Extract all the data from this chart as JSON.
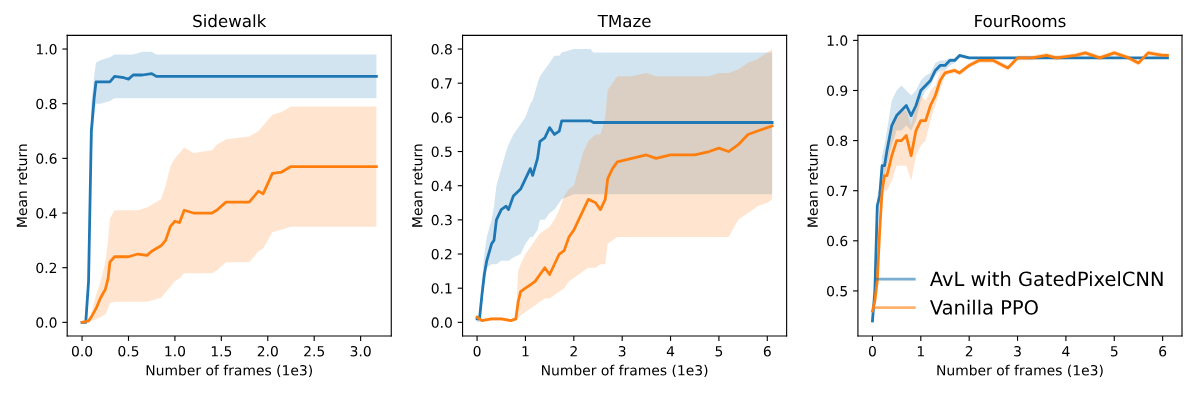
{
  "chart_data": [
    {
      "type": "line",
      "title": "Sidewalk",
      "xlabel": "Number of frames (1e3)",
      "ylabel": "Mean return",
      "xlim": [
        -0.16,
        3.33
      ],
      "ylim": [
        -0.05,
        1.05
      ],
      "xticks": [
        {
          "value": 0,
          "label": "0.0"
        },
        {
          "value": 0.5,
          "label": "0.5"
        },
        {
          "value": 1,
          "label": "1.0"
        },
        {
          "value": 1.5,
          "label": "1.5"
        },
        {
          "value": 2,
          "label": "2.0"
        },
        {
          "value": 2.5,
          "label": "2.5"
        },
        {
          "value": 3,
          "label": "3.0"
        }
      ],
      "yticks": [
        {
          "value": 0,
          "label": "0.0"
        },
        {
          "value": 0.2,
          "label": "0.2"
        },
        {
          "value": 0.4,
          "label": "0.4"
        },
        {
          "value": 0.6,
          "label": "0.6"
        },
        {
          "value": 0.8,
          "label": "0.8"
        },
        {
          "value": 1,
          "label": "1.0"
        }
      ],
      "series": [
        {
          "color": "#1f77b4",
          "x": [
            0,
            0.04,
            0.07,
            0.1,
            0.13,
            0.15,
            0.2,
            0.3,
            0.35,
            0.45,
            0.5,
            0.55,
            0.65,
            0.75,
            0.8,
            3.17
          ],
          "values": [
            0,
            0,
            0.15,
            0.7,
            0.82,
            0.88,
            0.88,
            0.88,
            0.9,
            0.895,
            0.89,
            0.905,
            0.905,
            0.91,
            0.9,
            0.9
          ],
          "lower": [
            0,
            0,
            0.1,
            0.6,
            0.75,
            0.8,
            0.8,
            0.81,
            0.82,
            0.82,
            0.82,
            0.82,
            0.82,
            0.82,
            0.82,
            0.82
          ],
          "upper": [
            0,
            0,
            0.2,
            0.8,
            0.9,
            0.95,
            0.96,
            0.97,
            0.98,
            0.98,
            0.98,
            0.98,
            0.99,
            0.99,
            0.98,
            0.98
          ]
        },
        {
          "color": "#ff7f0e",
          "x": [
            0,
            0.07,
            0.1,
            0.15,
            0.2,
            0.25,
            0.28,
            0.3,
            0.35,
            0.5,
            0.6,
            0.7,
            0.75,
            0.85,
            0.9,
            0.95,
            1.0,
            1.05,
            1.1,
            1.2,
            1.4,
            1.45,
            1.55,
            1.8,
            1.9,
            1.95,
            2.05,
            2.15,
            2.25,
            3.17
          ],
          "values": [
            0,
            0.005,
            0.02,
            0.05,
            0.09,
            0.12,
            0.16,
            0.22,
            0.24,
            0.24,
            0.25,
            0.245,
            0.26,
            0.28,
            0.3,
            0.35,
            0.37,
            0.365,
            0.41,
            0.4,
            0.4,
            0.41,
            0.44,
            0.44,
            0.48,
            0.47,
            0.545,
            0.55,
            0.57,
            0.57
          ],
          "lower": [
            0,
            0,
            0.005,
            0.01,
            0.02,
            0.03,
            0.05,
            0.07,
            0.075,
            0.075,
            0.075,
            0.075,
            0.08,
            0.09,
            0.11,
            0.13,
            0.15,
            0.16,
            0.18,
            0.18,
            0.18,
            0.19,
            0.22,
            0.22,
            0.26,
            0.27,
            0.33,
            0.34,
            0.35,
            0.35
          ],
          "upper": [
            0,
            0.01,
            0.03,
            0.1,
            0.15,
            0.22,
            0.3,
            0.38,
            0.41,
            0.41,
            0.41,
            0.42,
            0.43,
            0.45,
            0.5,
            0.57,
            0.6,
            0.62,
            0.64,
            0.62,
            0.63,
            0.65,
            0.67,
            0.68,
            0.7,
            0.72,
            0.76,
            0.77,
            0.79,
            0.79
          ]
        }
      ]
    },
    {
      "type": "line",
      "title": "TMaze",
      "xlabel": "Number of frames (1e3)",
      "ylabel": "Mean return",
      "xlim": [
        -0.3,
        6.4
      ],
      "ylim": [
        -0.04,
        0.84
      ],
      "xticks": [
        0,
        1,
        2,
        3,
        4,
        5,
        6
      ],
      "yticks": [
        {
          "value": 0,
          "label": "0.0"
        },
        0.1,
        0.2,
        0.3,
        0.4,
        0.5,
        0.6,
        0.7,
        0.8
      ],
      "series": [
        {
          "color": "#1f77b4",
          "x": [
            0,
            0.05,
            0.1,
            0.15,
            0.2,
            0.3,
            0.35,
            0.4,
            0.5,
            0.6,
            0.65,
            0.75,
            0.9,
            1.0,
            1.1,
            1.15,
            1.25,
            1.3,
            1.4,
            1.5,
            1.6,
            1.7,
            1.75,
            2.0,
            2.35,
            2.4,
            6.1
          ],
          "values": [
            0.01,
            0.01,
            0.08,
            0.14,
            0.18,
            0.23,
            0.24,
            0.3,
            0.33,
            0.34,
            0.33,
            0.37,
            0.39,
            0.42,
            0.45,
            0.43,
            0.48,
            0.53,
            0.54,
            0.57,
            0.55,
            0.56,
            0.59,
            0.59,
            0.59,
            0.585,
            0.585
          ],
          "lower": [
            0,
            0,
            0.05,
            0.12,
            0.16,
            0.17,
            0.17,
            0.17,
            0.18,
            0.18,
            0.18,
            0.19,
            0.2,
            0.23,
            0.25,
            0.25,
            0.27,
            0.3,
            0.3,
            0.32,
            0.33,
            0.35,
            0.36,
            0.375,
            0.375,
            0.375,
            0.375
          ],
          "upper": [
            0.02,
            0.02,
            0.12,
            0.2,
            0.25,
            0.3,
            0.34,
            0.4,
            0.45,
            0.5,
            0.52,
            0.55,
            0.58,
            0.6,
            0.64,
            0.65,
            0.7,
            0.72,
            0.74,
            0.76,
            0.78,
            0.78,
            0.79,
            0.8,
            0.8,
            0.79,
            0.79
          ]
        },
        {
          "color": "#ff7f0e",
          "x": [
            0,
            0.1,
            0.3,
            0.5,
            0.7,
            0.8,
            0.85,
            0.9,
            1.0,
            1.1,
            1.2,
            1.3,
            1.4,
            1.5,
            1.6,
            1.7,
            1.8,
            1.9,
            2.0,
            2.1,
            2.2,
            2.3,
            2.45,
            2.55,
            2.65,
            2.7,
            2.8,
            2.9,
            3.2,
            3.5,
            3.7,
            4.0,
            4.5,
            4.8,
            5.0,
            5.2,
            5.4,
            5.6,
            5.8,
            6.0,
            6.1
          ],
          "values": [
            0.015,
            0.005,
            0.01,
            0.01,
            0.005,
            0.01,
            0.06,
            0.09,
            0.1,
            0.11,
            0.12,
            0.14,
            0.16,
            0.14,
            0.17,
            0.2,
            0.21,
            0.25,
            0.27,
            0.3,
            0.33,
            0.36,
            0.35,
            0.33,
            0.36,
            0.42,
            0.45,
            0.47,
            0.48,
            0.49,
            0.48,
            0.49,
            0.49,
            0.5,
            0.51,
            0.5,
            0.52,
            0.55,
            0.56,
            0.57,
            0.575
          ],
          "lower": [
            0.01,
            0.005,
            0.005,
            0.005,
            0.005,
            0.005,
            0.01,
            0.02,
            0.03,
            0.04,
            0.05,
            0.06,
            0.07,
            0.07,
            0.08,
            0.09,
            0.1,
            0.12,
            0.13,
            0.14,
            0.15,
            0.16,
            0.16,
            0.17,
            0.17,
            0.23,
            0.24,
            0.25,
            0.25,
            0.25,
            0.25,
            0.25,
            0.25,
            0.25,
            0.25,
            0.25,
            0.3,
            0.32,
            0.34,
            0.35,
            0.36
          ],
          "upper": [
            0.02,
            0.01,
            0.015,
            0.015,
            0.01,
            0.015,
            0.15,
            0.17,
            0.2,
            0.22,
            0.24,
            0.26,
            0.27,
            0.28,
            0.3,
            0.33,
            0.37,
            0.39,
            0.4,
            0.45,
            0.5,
            0.53,
            0.55,
            0.55,
            0.6,
            0.68,
            0.7,
            0.72,
            0.72,
            0.73,
            0.72,
            0.72,
            0.72,
            0.72,
            0.73,
            0.73,
            0.74,
            0.76,
            0.77,
            0.79,
            0.8
          ]
        }
      ]
    },
    {
      "type": "line",
      "title": "FourRooms",
      "xlabel": "Number of frames (1e3)",
      "ylabel": "Mean return",
      "xlim": [
        -0.3,
        6.4
      ],
      "ylim": [
        0.41,
        1.01
      ],
      "legend": "bottom right",
      "xticks": [
        0,
        1,
        2,
        3,
        4,
        5,
        6
      ],
      "yticks": [
        0.5,
        0.6,
        0.7,
        0.8,
        0.9,
        {
          "value": 1,
          "label": "1.0"
        }
      ],
      "series": [
        {
          "name": "AvL with GatedPixelCNN",
          "color": "#1f77b4",
          "x": [
            0,
            0.05,
            0.1,
            0.15,
            0.2,
            0.25,
            0.3,
            0.4,
            0.5,
            0.6,
            0.7,
            0.8,
            0.9,
            1.0,
            1.1,
            1.2,
            1.3,
            1.4,
            1.5,
            1.6,
            1.7,
            1.8,
            2.0,
            6.1
          ],
          "values": [
            0.44,
            0.5,
            0.67,
            0.69,
            0.75,
            0.75,
            0.78,
            0.83,
            0.85,
            0.86,
            0.87,
            0.85,
            0.87,
            0.9,
            0.91,
            0.92,
            0.94,
            0.95,
            0.95,
            0.96,
            0.96,
            0.97,
            0.965,
            0.965
          ],
          "lower": [
            0.44,
            0.49,
            0.65,
            0.67,
            0.72,
            0.73,
            0.75,
            0.79,
            0.82,
            0.82,
            0.83,
            0.82,
            0.84,
            0.88,
            0.9,
            0.91,
            0.93,
            0.94,
            0.94,
            0.95,
            0.955,
            0.965,
            0.963,
            0.963
          ],
          "upper": [
            0.44,
            0.52,
            0.69,
            0.71,
            0.77,
            0.79,
            0.82,
            0.88,
            0.9,
            0.91,
            0.9,
            0.89,
            0.9,
            0.92,
            0.93,
            0.935,
            0.955,
            0.96,
            0.96,
            0.965,
            0.965,
            0.972,
            0.967,
            0.967
          ]
        },
        {
          "name": "Vanilla PPO",
          "color": "#ff7f0e",
          "x": [
            0,
            0.05,
            0.1,
            0.15,
            0.2,
            0.25,
            0.3,
            0.4,
            0.5,
            0.6,
            0.7,
            0.8,
            0.9,
            1.0,
            1.1,
            1.2,
            1.3,
            1.4,
            1.5,
            1.7,
            1.8,
            2.0,
            2.2,
            2.5,
            2.8,
            3.0,
            3.3,
            3.6,
            3.8,
            4.2,
            4.4,
            4.7,
            5.0,
            5.3,
            5.5,
            5.7,
            6.0,
            6.1
          ],
          "values": [
            0.46,
            0.48,
            0.52,
            0.62,
            0.7,
            0.73,
            0.73,
            0.77,
            0.8,
            0.8,
            0.81,
            0.77,
            0.82,
            0.84,
            0.84,
            0.87,
            0.89,
            0.92,
            0.935,
            0.94,
            0.935,
            0.95,
            0.96,
            0.96,
            0.945,
            0.965,
            0.965,
            0.97,
            0.965,
            0.97,
            0.975,
            0.965,
            0.975,
            0.965,
            0.955,
            0.975,
            0.97,
            0.97
          ],
          "lower": [
            0.46,
            0.47,
            0.5,
            0.6,
            0.68,
            0.7,
            0.7,
            0.72,
            0.75,
            0.75,
            0.75,
            0.72,
            0.77,
            0.79,
            0.8,
            0.84,
            0.87,
            0.9,
            0.93,
            0.935,
            0.93,
            0.945,
            0.955,
            0.955,
            0.94,
            0.96,
            0.96,
            0.965,
            0.96,
            0.965,
            0.97,
            0.96,
            0.97,
            0.96,
            0.95,
            0.97,
            0.965,
            0.965
          ],
          "upper": [
            0.46,
            0.49,
            0.54,
            0.64,
            0.72,
            0.76,
            0.77,
            0.82,
            0.85,
            0.86,
            0.86,
            0.83,
            0.87,
            0.89,
            0.88,
            0.9,
            0.91,
            0.94,
            0.94,
            0.945,
            0.94,
            0.955,
            0.965,
            0.965,
            0.95,
            0.97,
            0.97,
            0.975,
            0.97,
            0.975,
            0.98,
            0.97,
            0.98,
            0.97,
            0.96,
            0.98,
            0.975,
            0.975
          ]
        }
      ]
    }
  ]
}
